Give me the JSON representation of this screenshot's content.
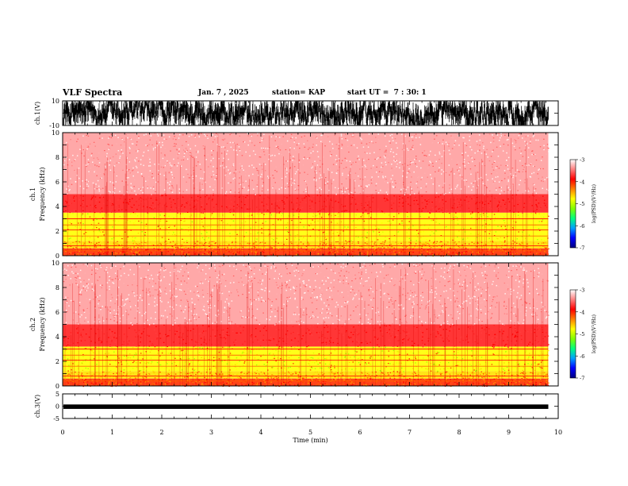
{
  "header": {
    "title": "VLF Spectra",
    "date": "Jan. 7 , 2025",
    "station": "station= KAP",
    "start": "start UT =  7 : 30: 1"
  },
  "chart_data": [
    {
      "type": "line",
      "name": "ch1-waveform",
      "ylabel": "ch.1(V)",
      "ylim": [
        -10,
        10
      ],
      "y_ticks": [
        "10",
        "-10"
      ],
      "xlim": [
        0,
        10
      ]
    },
    {
      "type": "heatmap",
      "name": "ch1-spectrogram",
      "ylabel": "ch.1\nFrequency (kHz)",
      "ylim": [
        0,
        10
      ],
      "y_ticks": [
        "0",
        "2",
        "4",
        "6",
        "8",
        "10"
      ],
      "xlim": [
        0,
        10
      ],
      "data_end_min": 9.8,
      "bands": [
        {
          "from": 0.0,
          "to": 0.6,
          "level": "orange-red"
        },
        {
          "from": 0.6,
          "to": 1.2,
          "level": "yellow"
        },
        {
          "from": 1.2,
          "to": 3.5,
          "level": "yellow-green"
        },
        {
          "from": 3.5,
          "to": 5.0,
          "level": "red"
        },
        {
          "from": 5.0,
          "to": 10.0,
          "level": "light-red"
        }
      ],
      "colorbar": {
        "label": "log(PSD)(V²/Hz)",
        "ticks": [
          "-3",
          "-4",
          "-5",
          "-6",
          "-7"
        ],
        "range": [
          -7,
          -3
        ]
      }
    },
    {
      "type": "heatmap",
      "name": "ch2-spectrogram",
      "ylabel": "ch.2\nFrequency (kHz)",
      "ylim": [
        0,
        10
      ],
      "y_ticks": [
        "0",
        "2",
        "4",
        "6",
        "8",
        "10"
      ],
      "xlim": [
        0,
        10
      ],
      "data_end_min": 9.8,
      "bands": [
        {
          "from": 0.0,
          "to": 0.6,
          "level": "orange-red"
        },
        {
          "from": 0.6,
          "to": 1.2,
          "level": "yellow"
        },
        {
          "from": 1.2,
          "to": 3.2,
          "level": "yellow-green"
        },
        {
          "from": 3.2,
          "to": 5.0,
          "level": "red"
        },
        {
          "from": 5.0,
          "to": 10.0,
          "level": "light-red"
        }
      ],
      "colorbar": {
        "label": "log(PSD)(V²/Hz)",
        "ticks": [
          "-3",
          "-4",
          "-5",
          "-6",
          "-7"
        ],
        "range": [
          -7,
          -3
        ]
      }
    },
    {
      "type": "line",
      "name": "ch3-waveform",
      "ylabel": "ch.3(V)",
      "ylim": [
        -5,
        5
      ],
      "y_ticks": [
        "5",
        "0",
        "-5"
      ],
      "level": -0.2,
      "xlim": [
        0,
        10
      ],
      "xlabel": "Time (min)",
      "x_ticks": [
        "0",
        "1",
        "2",
        "3",
        "4",
        "5",
        "6",
        "7",
        "8",
        "9",
        "10"
      ]
    }
  ],
  "colors": {
    "waveform": "#000000",
    "colorbar": [
      "#000080",
      "#0000ff",
      "#00a0ff",
      "#00ff80",
      "#80ff00",
      "#ffff00",
      "#ff8000",
      "#ff0000",
      "#ff8080",
      "#ffffff"
    ]
  }
}
